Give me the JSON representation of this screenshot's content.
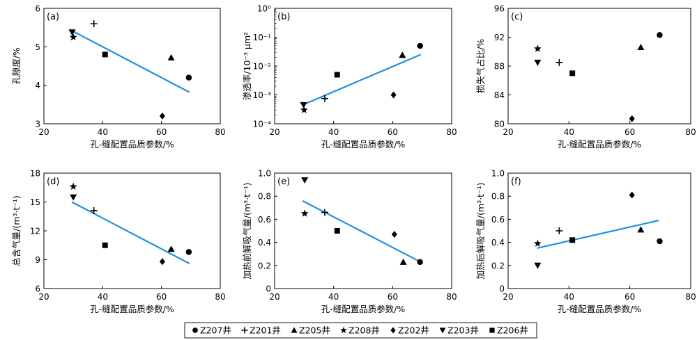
{
  "legend": {
    "items": [
      {
        "marker": "circle",
        "label": "Z207井"
      },
      {
        "marker": "plus",
        "label": "Z201井"
      },
      {
        "marker": "triangle-up",
        "label": "Z205井"
      },
      {
        "marker": "star",
        "label": "Z208井"
      },
      {
        "marker": "diamond",
        "label": "Z202井"
      },
      {
        "marker": "triangle-down",
        "label": "Z203井"
      },
      {
        "marker": "square",
        "label": "Z206井"
      }
    ]
  },
  "colors": {
    "fit_line": "#1e90e0",
    "marker": "#000000",
    "axis": "#000000"
  },
  "chart_data": [
    {
      "type": "scatter",
      "panel_label": "(a)",
      "xlabel": "孔-缝配置品质参数/%",
      "ylabel": "孔隙度/%",
      "xlim": [
        20,
        80
      ],
      "ylim": [
        3,
        6
      ],
      "yscale": "linear",
      "x_ticks": [
        "20",
        "40",
        "60",
        "80"
      ],
      "y_ticks": [
        "3",
        "4",
        "5",
        "6"
      ],
      "points": [
        {
          "well": "Z207井",
          "x": 69.3,
          "y": 4.2
        },
        {
          "well": "Z201井",
          "x": 37,
          "y": 5.6
        },
        {
          "well": "Z205井",
          "x": 63.3,
          "y": 4.72
        },
        {
          "well": "Z208井",
          "x": 30,
          "y": 5.25
        },
        {
          "well": "Z202井",
          "x": 60.3,
          "y": 3.2
        },
        {
          "well": "Z203井",
          "x": 29.6,
          "y": 5.38
        },
        {
          "well": "Z206井",
          "x": 40.8,
          "y": 4.8
        }
      ],
      "fit_line": {
        "x": [
          29.5,
          69.5
        ],
        "y": [
          5.42,
          3.82
        ]
      }
    },
    {
      "type": "scatter",
      "panel_label": "(b)",
      "xlabel": "孔-缝配置品质参数/%",
      "ylabel": "渗透率/10⁻³ μm²",
      "xlim": [
        20,
        80
      ],
      "ylim": [
        0.0001,
        1
      ],
      "yscale": "log",
      "x_ticks": [
        "20",
        "40",
        "60",
        "80"
      ],
      "y_ticks": [
        "10⁻⁴",
        "10⁻³",
        "10⁻²",
        "10⁻¹",
        "10⁰"
      ],
      "y_tick_values": [
        0.0001,
        0.001,
        0.01,
        0.1,
        1
      ],
      "points": [
        {
          "well": "Z207井",
          "x": 69.3,
          "y": 0.05
        },
        {
          "well": "Z201井",
          "x": 37,
          "y": 0.00075
        },
        {
          "well": "Z205井",
          "x": 63.3,
          "y": 0.024
        },
        {
          "well": "Z208井",
          "x": 30,
          "y": 0.0003
        },
        {
          "well": "Z202井",
          "x": 60.3,
          "y": 0.001
        },
        {
          "well": "Z203井",
          "x": 29.8,
          "y": 0.00045
        },
        {
          "well": "Z206井",
          "x": 41.2,
          "y": 0.005
        }
      ],
      "fit_line": {
        "x": [
          29.5,
          69.5
        ],
        "y": [
          0.00045,
          0.025
        ]
      }
    },
    {
      "type": "scatter",
      "panel_label": "(c)",
      "xlabel": "孔-缝配置品质参数/%",
      "ylabel": "损失气占比/%",
      "xlim": [
        20,
        80
      ],
      "ylim": [
        80,
        96
      ],
      "yscale": "linear",
      "x_ticks": [
        "20",
        "40",
        "60",
        "80"
      ],
      "y_ticks": [
        "80",
        "84",
        "88",
        "92",
        "96"
      ],
      "points": [
        {
          "well": "Z207井",
          "x": 69.8,
          "y": 92.3
        },
        {
          "well": "Z201井",
          "x": 36.8,
          "y": 88.5
        },
        {
          "well": "Z205井",
          "x": 63.6,
          "y": 90.6
        },
        {
          "well": "Z208井",
          "x": 29.7,
          "y": 90.4
        },
        {
          "well": "Z202井",
          "x": 60.7,
          "y": 80.7
        },
        {
          "well": "Z203井",
          "x": 29.7,
          "y": 88.5
        },
        {
          "well": "Z206井",
          "x": 41.1,
          "y": 87.0
        }
      ]
    },
    {
      "type": "scatter",
      "panel_label": "(d)",
      "xlabel": "孔-缝配置品质参数/%",
      "ylabel": "总含气量/(m³·t⁻¹)",
      "xlim": [
        20,
        80
      ],
      "ylim": [
        6,
        18
      ],
      "yscale": "linear",
      "x_ticks": [
        "20",
        "40",
        "60",
        "80"
      ],
      "y_ticks": [
        "6",
        "9",
        "12",
        "15",
        "18"
      ],
      "points": [
        {
          "well": "Z207井",
          "x": 69.3,
          "y": 9.8
        },
        {
          "well": "Z201井",
          "x": 37,
          "y": 14.1
        },
        {
          "well": "Z205井",
          "x": 63.3,
          "y": 10.1
        },
        {
          "well": "Z208井",
          "x": 30,
          "y": 16.6
        },
        {
          "well": "Z202井",
          "x": 60.3,
          "y": 8.8
        },
        {
          "well": "Z203井",
          "x": 30,
          "y": 15.5
        },
        {
          "well": "Z206井",
          "x": 40.8,
          "y": 10.5
        }
      ],
      "fit_line": {
        "x": [
          29.5,
          69.5
        ],
        "y": [
          15.0,
          8.6
        ]
      }
    },
    {
      "type": "scatter",
      "panel_label": "(e)",
      "xlabel": "孔-缝配置品质参数/%",
      "ylabel": "加热前解吸气量/(m³·t⁻¹)",
      "xlim": [
        20,
        80
      ],
      "ylim": [
        0,
        1.0
      ],
      "yscale": "linear",
      "x_ticks": [
        "20",
        "40",
        "60",
        "80"
      ],
      "y_ticks": [
        "0",
        "0.2",
        "0.4",
        "0.6",
        "0.8",
        "1.0"
      ],
      "points": [
        {
          "well": "Z207井",
          "x": 69.3,
          "y": 0.23
        },
        {
          "well": "Z201井",
          "x": 37,
          "y": 0.66
        },
        {
          "well": "Z205井",
          "x": 63.6,
          "y": 0.23
        },
        {
          "well": "Z208井",
          "x": 30.2,
          "y": 0.65
        },
        {
          "well": "Z202井",
          "x": 60.6,
          "y": 0.47
        },
        {
          "well": "Z203井",
          "x": 30.2,
          "y": 0.94
        },
        {
          "well": "Z206井",
          "x": 41.2,
          "y": 0.5
        }
      ],
      "fit_line": {
        "x": [
          29.5,
          69.5
        ],
        "y": [
          0.76,
          0.23
        ]
      }
    },
    {
      "type": "scatter",
      "panel_label": "(f)",
      "xlabel": "孔-缝配置品质参数/%",
      "ylabel": "加热后解吸气量/(m³·t⁻¹)",
      "xlim": [
        20,
        80
      ],
      "ylim": [
        0,
        1.0
      ],
      "yscale": "linear",
      "x_ticks": [
        "20",
        "40",
        "60",
        "80"
      ],
      "y_ticks": [
        "0",
        "0.2",
        "0.4",
        "0.6",
        "0.8",
        "1.0"
      ],
      "points": [
        {
          "well": "Z207井",
          "x": 69.8,
          "y": 0.41
        },
        {
          "well": "Z201井",
          "x": 36.8,
          "y": 0.5
        },
        {
          "well": "Z205井",
          "x": 63.6,
          "y": 0.51
        },
        {
          "well": "Z208井",
          "x": 29.7,
          "y": 0.39
        },
        {
          "well": "Z202井",
          "x": 60.7,
          "y": 0.81
        },
        {
          "well": "Z203井",
          "x": 29.7,
          "y": 0.2
        },
        {
          "well": "Z206井",
          "x": 41.1,
          "y": 0.42
        }
      ],
      "fit_line": {
        "x": [
          29.5,
          69.5
        ],
        "y": [
          0.35,
          0.59
        ]
      }
    }
  ]
}
